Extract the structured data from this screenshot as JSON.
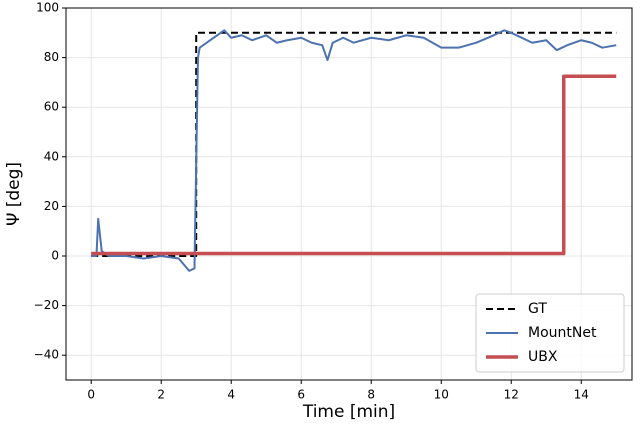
{
  "chart_data": {
    "type": "line",
    "xlabel": "Time [min]",
    "ylabel": "Ψ [deg]",
    "xlim": [
      -0.72,
      15.45
    ],
    "ylim": [
      -50,
      100
    ],
    "xticks": [
      0,
      2,
      4,
      6,
      8,
      10,
      12,
      14
    ],
    "yticks": [
      {
        "value": -40,
        "label": "−40"
      },
      {
        "value": -20,
        "label": "−20"
      },
      0,
      20,
      40,
      60,
      80,
      100
    ],
    "grid": true,
    "legend": "lower right",
    "series": [
      {
        "name": "GT",
        "color": "#000000",
        "dash": true,
        "width": 2,
        "x": [
          0,
          3,
          3,
          15
        ],
        "values": [
          0,
          0,
          90,
          90
        ]
      },
      {
        "name": "MountNet",
        "color": "#4c72b0",
        "dash": false,
        "width": 2,
        "x": [
          0,
          0.15,
          0.2,
          0.3,
          0.5,
          1,
          1.5,
          2,
          2.5,
          2.8,
          2.95,
          3.05,
          3.1,
          3.2,
          3.4,
          3.6,
          3.8,
          4.0,
          4.3,
          4.6,
          5.0,
          5.3,
          5.6,
          6.0,
          6.3,
          6.6,
          6.75,
          6.9,
          7.2,
          7.5,
          8.0,
          8.5,
          9.0,
          9.5,
          10.0,
          10.5,
          11.0,
          11.5,
          11.8,
          12.0,
          12.3,
          12.6,
          13.0,
          13.3,
          13.6,
          14.0,
          14.3,
          14.6,
          15.0
        ],
        "values": [
          0,
          0,
          15,
          2,
          0,
          0,
          -1,
          0,
          -1,
          -6,
          -5,
          80,
          84,
          85,
          87,
          89,
          91,
          88,
          89,
          87,
          89,
          86,
          87,
          88,
          86,
          85,
          79,
          86,
          88,
          86,
          88,
          87,
          89,
          88,
          84,
          84,
          86,
          89,
          91,
          90,
          88,
          86,
          87,
          83,
          85,
          87,
          86,
          84,
          85
        ]
      },
      {
        "name": "UBX",
        "color": "#c44e52",
        "dash": false,
        "width": 3.5,
        "x": [
          0,
          13.5,
          13.5,
          15
        ],
        "values": [
          1,
          1,
          72.5,
          72.5
        ]
      }
    ]
  }
}
